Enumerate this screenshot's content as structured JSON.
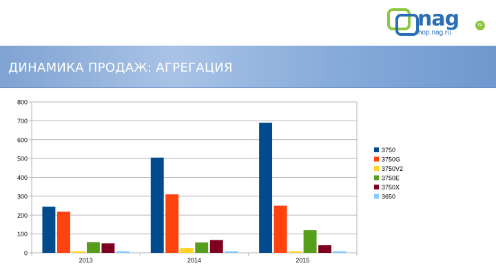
{
  "logo": {
    "name": "nag",
    "subtitle": "shop.nag.ru",
    "badge": "ru"
  },
  "header": {
    "title": "ДИНАМИКА ПРОДАЖ: АГРЕГАЦИЯ"
  },
  "colors": {
    "banner": "#8db0dc",
    "logo_blue": "#2a6fb5",
    "logo_green": "#8dc63f"
  },
  "chart_data": {
    "type": "bar",
    "categories": [
      "2013",
      "2014",
      "2015"
    ],
    "ylim": [
      0,
      800
    ],
    "yticks": [
      "0",
      "100",
      "200",
      "300",
      "400",
      "500",
      "600",
      "700",
      "800"
    ],
    "grid": true,
    "legend_position": "right",
    "series": [
      {
        "name": "3750",
        "color": "#004b8d",
        "values": [
          245,
          505,
          690
        ]
      },
      {
        "name": "3750G",
        "color": "#ff420e",
        "values": [
          218,
          310,
          250
        ]
      },
      {
        "name": "3750V2",
        "color": "#ffd320",
        "values": [
          8,
          25,
          8
        ]
      },
      {
        "name": "3750E",
        "color": "#579d1c",
        "values": [
          57,
          55,
          120
        ]
      },
      {
        "name": "3750X",
        "color": "#7e0021",
        "values": [
          50,
          68,
          40
        ]
      },
      {
        "name": "3650",
        "color": "#83caff",
        "values": [
          8,
          8,
          8
        ]
      }
    ]
  }
}
